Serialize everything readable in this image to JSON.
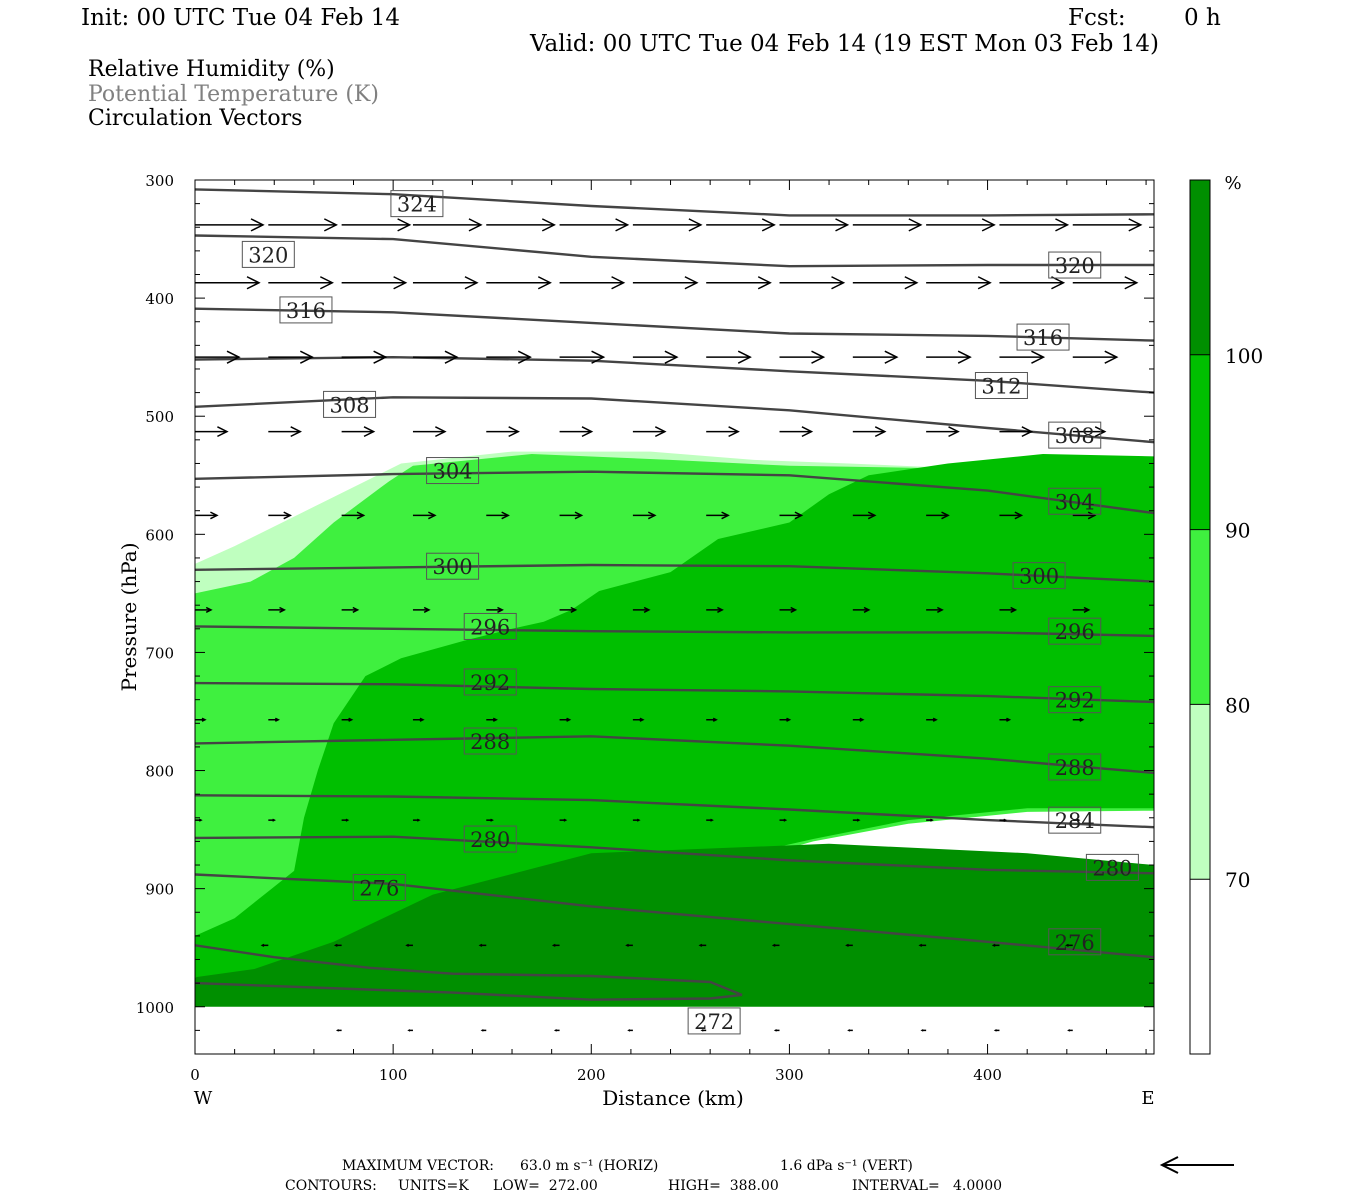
{
  "header": {
    "init": "Init: 00 UTC Tue 04 Feb 14",
    "fcst_label": "Fcst:",
    "fcst_value": "0 h",
    "valid": "Valid: 00 UTC Tue 04 Feb 14 (19 EST Mon 03 Feb 14)"
  },
  "legend": {
    "rh": "Relative Humidity (%)",
    "theta": "Potential Temperature (K)",
    "vectors": "Circulation Vectors"
  },
  "footer": {
    "max_vector_label": "MAXIMUM VECTOR:",
    "horiz": "63.0 m s⁻¹ (HORIZ)",
    "vert": "1.6 dPa s⁻¹ (VERT)",
    "contours_label": "CONTOURS:",
    "units": "UNITS=K",
    "low": "LOW=  272.00",
    "high": "HIGH=  388.00",
    "interval": "INTERVAL=   4.0000"
  },
  "colors": {
    "rh_70": "#bfffbf",
    "rh_80": "#3ff03f",
    "rh_90": "#00bf00",
    "rh_100": "#008f00",
    "contour": "#444444",
    "vector": "#000000"
  },
  "chart_data": {
    "type": "cross-section",
    "title": "Relative Humidity (%) / Potential Temperature (K) / Circulation Vectors",
    "xlabel": "Distance (km)",
    "ylabel": "Pressure (hPa)",
    "xlim": [
      0,
      484
    ],
    "ylim": [
      1040,
      300
    ],
    "x_ticks": [
      0,
      100,
      200,
      300,
      400
    ],
    "y_ticks": [
      300,
      400,
      500,
      600,
      700,
      800,
      900,
      1000
    ],
    "x_end_labels": {
      "left": "W",
      "right": "E"
    },
    "colorbar": {
      "unit": "%",
      "levels": [
        70,
        80,
        90,
        100
      ],
      "colors": [
        "#ffffff",
        "#bfffbf",
        "#3ff03f",
        "#00bf00",
        "#008f00"
      ]
    },
    "rh_regions": [
      {
        "level": 70,
        "polygon": [
          [
            0,
            925
          ],
          [
            38,
            905
          ],
          [
            55,
            870
          ],
          [
            73,
            830
          ],
          [
            88,
            800
          ],
          [
            100,
            780
          ],
          [
            130,
            740
          ],
          [
            160,
            720
          ],
          [
            200,
            705
          ],
          [
            230,
            690
          ],
          [
            290,
            685
          ],
          [
            330,
            690
          ],
          [
            360,
            670
          ],
          [
            400,
            632
          ],
          [
            484,
            620
          ],
          [
            484,
            548
          ],
          [
            400,
            545
          ],
          [
            330,
            540
          ],
          [
            282,
            537
          ],
          [
            230,
            530
          ],
          [
            160,
            530
          ],
          [
            104,
            540
          ],
          [
            86,
            555
          ],
          [
            50,
            585
          ],
          [
            20,
            610
          ],
          [
            0,
            625
          ]
        ]
      },
      {
        "level": 80,
        "polygon": [
          [
            0,
            960
          ],
          [
            41,
            960
          ],
          [
            88,
            960
          ],
          [
            120,
            955
          ],
          [
            150,
            945
          ],
          [
            180,
            915
          ],
          [
            220,
            900
          ],
          [
            270,
            880
          ],
          [
            312,
            860
          ],
          [
            360,
            845
          ],
          [
            420,
            835
          ],
          [
            484,
            834
          ],
          [
            484,
            547
          ],
          [
            300,
            542
          ],
          [
            240,
            537
          ],
          [
            170,
            532
          ],
          [
            110,
            542
          ],
          [
            98,
            555
          ],
          [
            70,
            590
          ],
          [
            50,
            620
          ],
          [
            28,
            640
          ],
          [
            0,
            650
          ]
        ]
      },
      {
        "level": 90,
        "polygon": [
          [
            0,
            975
          ],
          [
            88,
            970
          ],
          [
            120,
            960
          ],
          [
            150,
            944
          ],
          [
            180,
            915
          ],
          [
            220,
            898
          ],
          [
            264,
            876
          ],
          [
            312,
            858
          ],
          [
            360,
            842
          ],
          [
            420,
            832
          ],
          [
            484,
            832
          ],
          [
            484,
            534
          ],
          [
            428,
            532
          ],
          [
            380,
            540
          ],
          [
            340,
            550
          ],
          [
            320,
            566
          ],
          [
            300,
            590
          ],
          [
            264,
            604
          ],
          [
            240,
            632
          ],
          [
            204,
            648
          ],
          [
            190,
            664
          ],
          [
            176,
            674
          ],
          [
            160,
            680
          ],
          [
            136,
            690
          ],
          [
            104,
            705
          ],
          [
            86,
            720
          ],
          [
            70,
            760
          ],
          [
            62,
            800
          ],
          [
            55,
            840
          ],
          [
            50,
            885
          ],
          [
            20,
            925
          ],
          [
            0,
            940
          ]
        ]
      },
      {
        "level": 100,
        "polygon": [
          [
            0,
            1000
          ],
          [
            100,
            1000
          ],
          [
            200,
            1000
          ],
          [
            300,
            1000
          ],
          [
            400,
            1000
          ],
          [
            484,
            1000
          ],
          [
            484,
            880
          ],
          [
            420,
            870
          ],
          [
            320,
            862
          ],
          [
            200,
            870
          ],
          [
            120,
            905
          ],
          [
            70,
            945
          ],
          [
            30,
            968
          ],
          [
            0,
            975
          ]
        ]
      }
    ],
    "theta_contours": [
      {
        "value": 324,
        "points": [
          [
            0,
            308
          ],
          [
            100,
            312
          ],
          [
            200,
            322
          ],
          [
            300,
            330
          ],
          [
            400,
            330
          ],
          [
            484,
            329
          ]
        ],
        "labels": [
          [
            112,
            320
          ]
        ]
      },
      {
        "value": 320,
        "points": [
          [
            0,
            347
          ],
          [
            100,
            350
          ],
          [
            200,
            365
          ],
          [
            300,
            373
          ],
          [
            400,
            372
          ],
          [
            484,
            372
          ]
        ],
        "labels": [
          [
            37,
            363
          ],
          [
            444,
            372
          ]
        ]
      },
      {
        "value": 316,
        "points": [
          [
            0,
            409
          ],
          [
            100,
            412
          ],
          [
            200,
            421
          ],
          [
            300,
            430
          ],
          [
            400,
            432
          ],
          [
            484,
            436
          ]
        ],
        "labels": [
          [
            56,
            410
          ],
          [
            428,
            433
          ]
        ]
      },
      {
        "value": 312,
        "points": [
          [
            0,
            452
          ],
          [
            100,
            450
          ],
          [
            200,
            453
          ],
          [
            300,
            462
          ],
          [
            400,
            470
          ],
          [
            484,
            480
          ]
        ],
        "labels": [
          [
            407,
            474
          ]
        ]
      },
      {
        "value": 308,
        "points": [
          [
            0,
            492
          ],
          [
            100,
            484
          ],
          [
            200,
            485
          ],
          [
            300,
            495
          ],
          [
            400,
            510
          ],
          [
            484,
            522
          ]
        ],
        "labels": [
          [
            78,
            490
          ],
          [
            444,
            516
          ]
        ]
      },
      {
        "value": 304,
        "points": [
          [
            0,
            553
          ],
          [
            100,
            549
          ],
          [
            200,
            547
          ],
          [
            300,
            550
          ],
          [
            400,
            563
          ],
          [
            484,
            582
          ]
        ],
        "labels": [
          [
            130,
            546
          ],
          [
            444,
            572
          ]
        ]
      },
      {
        "value": 300,
        "points": [
          [
            0,
            630
          ],
          [
            100,
            628
          ],
          [
            200,
            626
          ],
          [
            300,
            627
          ],
          [
            400,
            633
          ],
          [
            484,
            640
          ]
        ],
        "labels": [
          [
            130,
            627
          ],
          [
            426,
            635
          ]
        ]
      },
      {
        "value": 296,
        "points": [
          [
            0,
            678
          ],
          [
            100,
            680
          ],
          [
            200,
            682
          ],
          [
            300,
            683
          ],
          [
            400,
            683
          ],
          [
            484,
            686
          ]
        ],
        "labels": [
          [
            149,
            678
          ],
          [
            444,
            682
          ]
        ]
      },
      {
        "value": 292,
        "points": [
          [
            0,
            726
          ],
          [
            100,
            727
          ],
          [
            200,
            731
          ],
          [
            300,
            733
          ],
          [
            400,
            737
          ],
          [
            484,
            742
          ]
        ],
        "labels": [
          [
            149,
            725
          ],
          [
            444,
            740
          ]
        ]
      },
      {
        "value": 288,
        "points": [
          [
            0,
            777
          ],
          [
            100,
            774
          ],
          [
            200,
            771
          ],
          [
            300,
            779
          ],
          [
            400,
            790
          ],
          [
            484,
            802
          ]
        ],
        "labels": [
          [
            149,
            775
          ],
          [
            444,
            797
          ]
        ]
      },
      {
        "value": 284,
        "points": [
          [
            0,
            821
          ],
          [
            100,
            822
          ],
          [
            200,
            825
          ],
          [
            300,
            833
          ],
          [
            400,
            842
          ],
          [
            484,
            848
          ]
        ],
        "labels": [
          [
            444,
            842
          ]
        ]
      },
      {
        "value": 280,
        "points": [
          [
            0,
            857
          ],
          [
            100,
            856
          ],
          [
            200,
            865
          ],
          [
            300,
            876
          ],
          [
            400,
            884
          ],
          [
            484,
            887
          ]
        ],
        "labels": [
          [
            149,
            858
          ],
          [
            463,
            882
          ]
        ]
      },
      {
        "value": 276,
        "points": [
          [
            0,
            888
          ],
          [
            100,
            896
          ],
          [
            200,
            915
          ],
          [
            300,
            930
          ],
          [
            400,
            945
          ],
          [
            484,
            958
          ]
        ],
        "labels": [
          [
            93,
            899
          ],
          [
            444,
            945
          ]
        ]
      },
      {
        "value": 272,
        "points": [
          [
            0,
            948
          ],
          [
            40,
            958
          ],
          [
            88,
            967
          ],
          [
            130,
            972
          ],
          [
            200,
            974
          ],
          [
            260,
            979
          ],
          [
            276,
            990
          ],
          [
            260,
            993
          ],
          [
            200,
            994
          ],
          [
            130,
            988
          ],
          [
            80,
            985
          ],
          [
            0,
            980
          ]
        ],
        "labels": [
          [
            262,
            1012
          ]
        ]
      }
    ],
    "vector_rows": [
      {
        "p": 338,
        "dx": 34,
        "xs": [
          0,
          37,
          74,
          110,
          147,
          184,
          221,
          258,
          295,
          332,
          369,
          406,
          443
        ]
      },
      {
        "p": 387,
        "dx": 32,
        "xs": [
          0,
          37,
          74,
          110,
          147,
          184,
          221,
          258,
          295,
          332,
          369,
          406,
          443
        ]
      },
      {
        "p": 450,
        "dx": 22,
        "xs": [
          0,
          37,
          74,
          110,
          147,
          184,
          221,
          258,
          295,
          332,
          369,
          406,
          443
        ]
      },
      {
        "p": 513,
        "dx": 16,
        "xs": [
          0,
          37,
          74,
          110,
          147,
          184,
          221,
          258,
          295,
          332,
          369,
          406,
          443
        ]
      },
      {
        "p": 584,
        "dx": 11,
        "xs": [
          0,
          37,
          74,
          110,
          147,
          184,
          221,
          258,
          295,
          332,
          369,
          406,
          443
        ]
      },
      {
        "p": 664,
        "dx": 8,
        "xs": [
          0,
          37,
          74,
          110,
          147,
          184,
          221,
          258,
          295,
          332,
          369,
          406,
          443
        ]
      },
      {
        "p": 757,
        "dx": 5,
        "xs": [
          0,
          37,
          74,
          110,
          147,
          184,
          221,
          258,
          295,
          332,
          369,
          406,
          443
        ]
      },
      {
        "p": 842,
        "dx": 3,
        "xs": [
          0,
          37,
          74,
          110,
          147,
          184,
          221,
          258,
          295,
          332,
          369,
          406,
          443
        ]
      },
      {
        "p": 948,
        "dx": -3,
        "xs": [
          0,
          37,
          74,
          110,
          147,
          184,
          221,
          258,
          295,
          332,
          369,
          406,
          443
        ]
      },
      {
        "p": 1020,
        "dx": -2,
        "xs": [
          74,
          110,
          147,
          184,
          221,
          258,
          295,
          332,
          369,
          406,
          443
        ]
      }
    ],
    "reference_vector": {
      "direction": "left",
      "label": "MAXIMUM VECTOR"
    }
  }
}
